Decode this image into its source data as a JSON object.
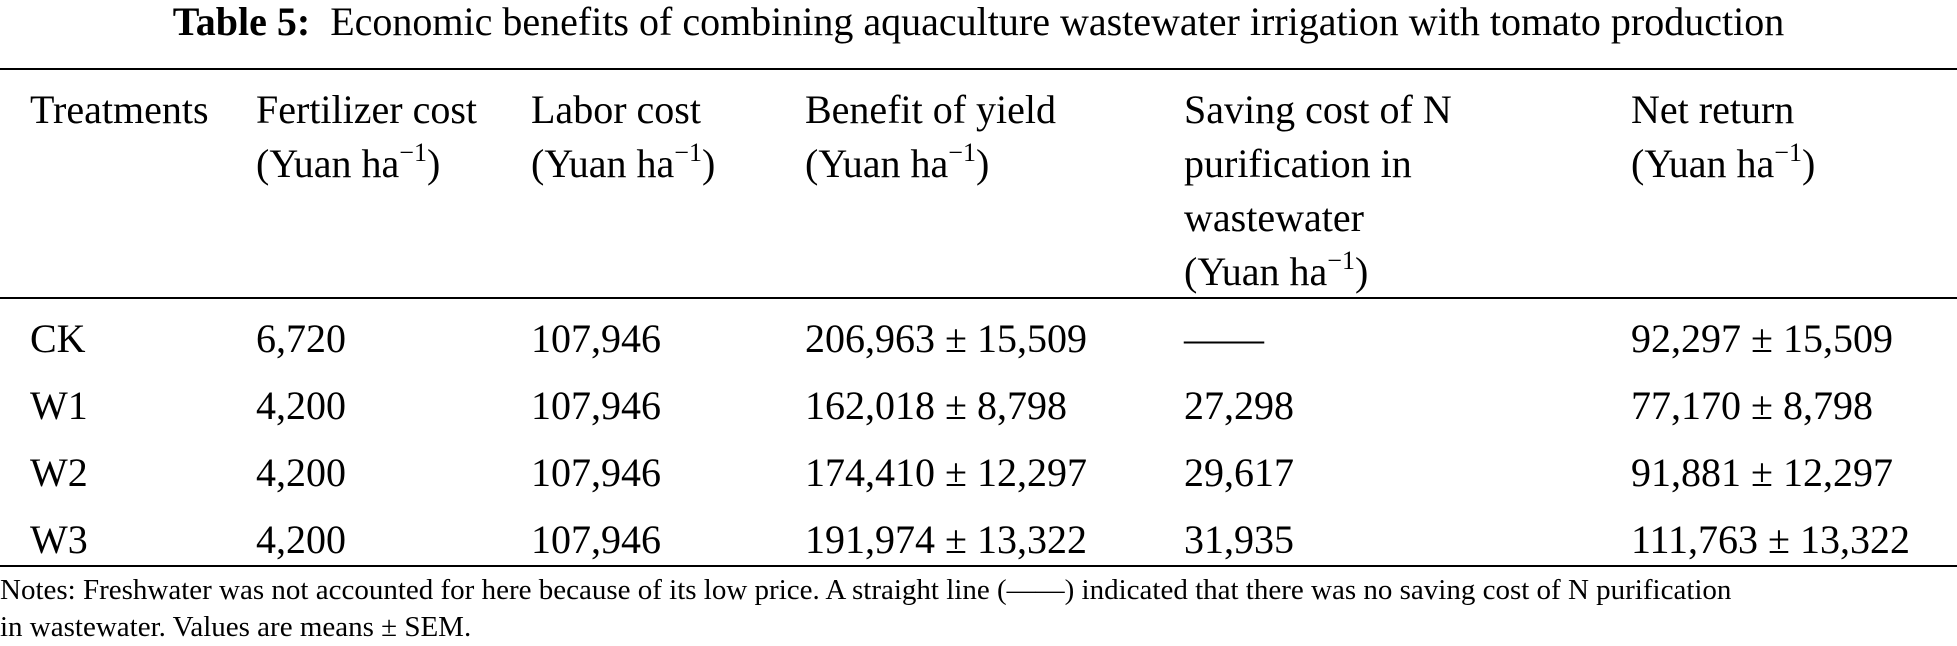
{
  "caption": {
    "label": "Table 5:",
    "text": "Economic benefits of combining aquaculture wastewater irrigation with tomato production"
  },
  "table": {
    "headers": [
      {
        "lines": [
          "Treatments"
        ]
      },
      {
        "lines": [
          "Fertilizer cost",
          "(Yuan ha"
        ],
        "unit_suffix": ")",
        "sup": "−1"
      },
      {
        "lines": [
          "Labor cost",
          "(Yuan ha"
        ],
        "unit_suffix": ")",
        "sup": "−1"
      },
      {
        "lines": [
          "Benefit of yield",
          "(Yuan ha"
        ],
        "unit_suffix": ")",
        "sup": "−1"
      },
      {
        "lines": [
          "Saving cost of N",
          "purification in",
          "wastewater",
          "(Yuan ha"
        ],
        "unit_suffix": ")",
        "sup": "−1"
      },
      {
        "lines": [
          "Net return",
          "(Yuan ha"
        ],
        "unit_suffix": ")",
        "sup": "−1"
      }
    ],
    "rows": [
      [
        "CK",
        "6,720",
        "107,946",
        "206,963 ± 15,509",
        "——",
        "92,297 ± 15,509"
      ],
      [
        "W1",
        "4,200",
        "107,946",
        "162,018 ± 8,798",
        "27,298",
        "77,170 ± 8,798"
      ],
      [
        "W2",
        "4,200",
        "107,946",
        "174,410 ± 12,297",
        "29,617",
        "91,881 ± 12,297"
      ],
      [
        "W3",
        "4,200",
        "107,946",
        "191,974 ± 13,322",
        "31,935",
        "111,763 ± 13,322"
      ]
    ]
  },
  "notes": {
    "line1": "Notes: Freshwater was not accounted for here because of its low price. A straight line (——) indicated that there was no saving cost of N purification",
    "line2": "in wastewater. Values are means ± SEM."
  }
}
